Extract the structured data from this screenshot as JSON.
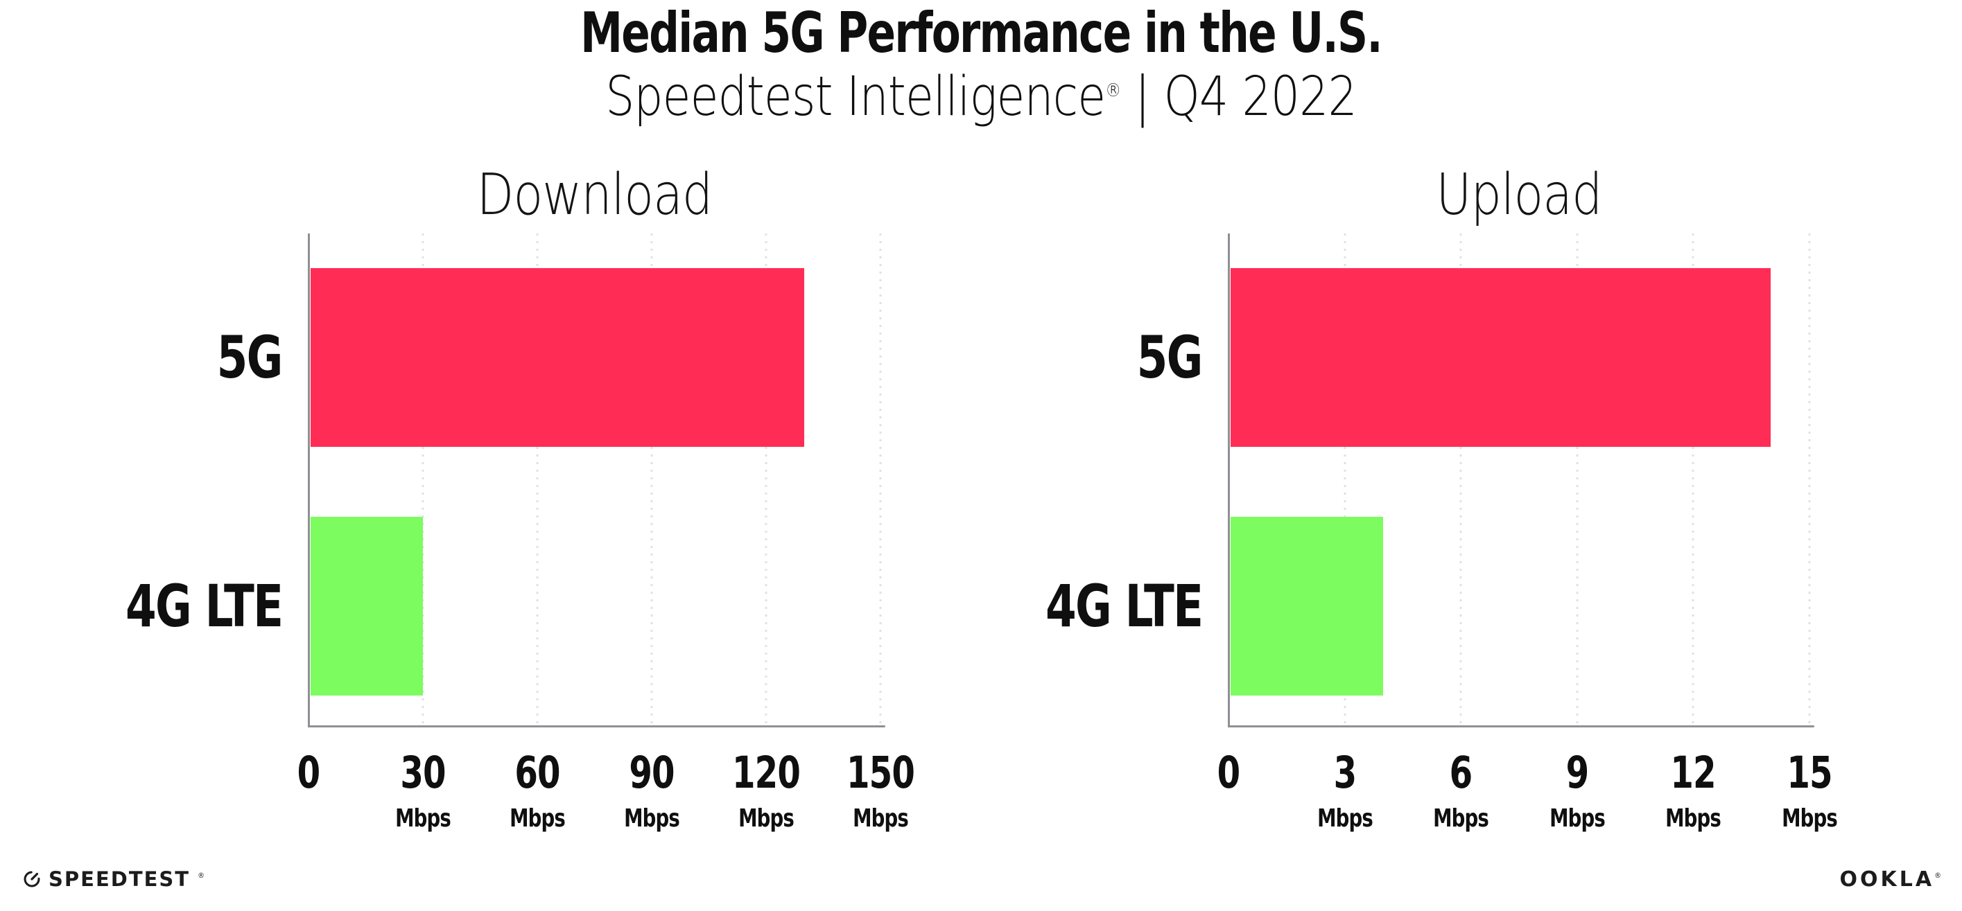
{
  "header": {
    "title": "Median 5G Performance in the U.S.",
    "subtitle_brand": "Speedtest Intelligence",
    "subtitle_registered_mark": "®",
    "subtitle_separator": "|",
    "subtitle_period": "Q4 2022"
  },
  "chart_data": [
    {
      "type": "bar",
      "orientation": "horizontal",
      "title": "Download",
      "categories": [
        "5G",
        "4G LTE"
      ],
      "series": [
        {
          "name": "5G",
          "value": 130,
          "color": "#ff2d55"
        },
        {
          "name": "4G LTE",
          "value": 30,
          "color": "#7dfc5f"
        }
      ],
      "unit": "Mbps",
      "tick_unit_label": "Mbps",
      "xlim": [
        0,
        150
      ],
      "xticks": [
        0,
        30,
        60,
        90,
        120,
        150
      ],
      "grid": "vertical-dotted",
      "legend": "none"
    },
    {
      "type": "bar",
      "orientation": "horizontal",
      "title": "Upload",
      "categories": [
        "5G",
        "4G LTE"
      ],
      "series": [
        {
          "name": "5G",
          "value": 14,
          "color": "#ff2d55"
        },
        {
          "name": "4G LTE",
          "value": 4,
          "color": "#7dfc5f"
        }
      ],
      "unit": "Mbps",
      "tick_unit_label": "Mbps",
      "xlim": [
        0,
        15
      ],
      "xticks": [
        0,
        3,
        6,
        9,
        12,
        15
      ],
      "grid": "vertical-dotted",
      "legend": "none"
    }
  ],
  "colors": {
    "bar_5g": "#ff2d55",
    "bar_4g_lte": "#7dfc5f",
    "gridline": "#e0e0ea",
    "axis": "#8f8f96",
    "text": "#0f0f0f"
  },
  "footer": {
    "speedtest_logo_text": "SPEEDTEST",
    "speedtest_trademark": "®",
    "ookla_logo_text": "OOKLA",
    "ookla_trademark": "®"
  }
}
